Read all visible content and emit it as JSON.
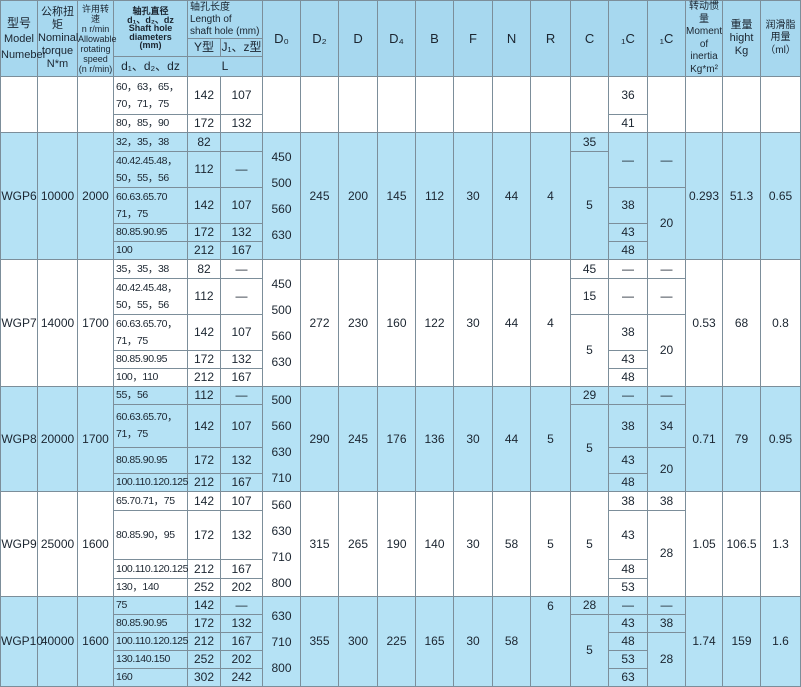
{
  "colors": {
    "border": "#7c8e9a",
    "header_bg": "#a7d8ef",
    "section_blue": "#b5e2f5",
    "text": "#1b2530"
  },
  "header": {
    "model_zh": "型号",
    "model_en": "Model",
    "model_en2": "Numeber",
    "torque": "公称扭矩\nNominal\ntorque\nN*m",
    "speed": "许用转速\nn r/min\nAllowable\nrotating\nspeed\n(n r/min)",
    "shaft": "轴孔直径\nd₁、d₂、dz\nShaft hole\ndiameters\n(mm)",
    "shaft_sub": "d₁、d₂、dz",
    "length": "轴孔长度 Length of\nshaft hole (mm)",
    "y_type": "Y型",
    "j_type": "J₁、z型",
    "l": "L",
    "d0": "D₀",
    "d2": "D₂",
    "d": "D",
    "d4": "D₄",
    "b": "B",
    "f": "F",
    "n": "N",
    "r": "R",
    "c": "C",
    "c1": "₁C",
    "c2": "₁C",
    "inertia": "转动惯量\nMoment of\ninertia\nKg*m²",
    "weight": "重量\nhight\nKg",
    "grease": "润滑脂\n用量\n（ml）"
  },
  "sections": [
    {
      "blue": false,
      "rows": [
        {
          "h": 38,
          "c": [
            {
              "t": "",
              "rs": 2
            },
            {
              "t": "",
              "rs": 2
            },
            {
              "t": "",
              "rs": 2
            },
            {
              "t": "60，63，65，\n70，71，75",
              "k": "sh"
            },
            {
              "t": "142"
            },
            {
              "t": "107"
            },
            {
              "t": "",
              "rs": 2
            },
            {
              "t": "",
              "rs": 2
            },
            {
              "t": "",
              "rs": 2
            },
            {
              "t": "",
              "rs": 2
            },
            {
              "t": "",
              "rs": 2
            },
            {
              "t": "",
              "rs": 2
            },
            {
              "t": "",
              "rs": 2
            },
            {
              "t": "",
              "rs": 2
            },
            {
              "t": "",
              "rs": 2
            },
            {
              "t": "36"
            },
            {
              "t": "",
              "rs": 2
            },
            {
              "t": "",
              "rs": 2
            },
            {
              "t": "",
              "rs": 2
            },
            {
              "t": "",
              "rs": 2
            }
          ]
        },
        {
          "h": 17,
          "c": [
            {
              "t": "80，85，90",
              "k": "sh"
            },
            {
              "t": "172"
            },
            {
              "t": "132"
            },
            {
              "t": "41"
            }
          ]
        }
      ]
    },
    {
      "blue": true,
      "rows": [
        {
          "h": 19,
          "c": [
            {
              "t": "WGP6",
              "rs": 5
            },
            {
              "t": "10000",
              "rs": 5
            },
            {
              "t": "2000",
              "rs": 5
            },
            {
              "t": "32，35，38",
              "k": "sh"
            },
            {
              "t": "82"
            },
            {
              "t": ""
            },
            {
              "t": "450\n500\n560\n630",
              "rs": 5,
              "k": "d0"
            },
            {
              "t": "245",
              "rs": 5
            },
            {
              "t": "200",
              "rs": 5
            },
            {
              "t": "145",
              "rs": 5
            },
            {
              "t": "112",
              "rs": 5
            },
            {
              "t": "30",
              "rs": 5
            },
            {
              "t": "44",
              "rs": 5
            },
            {
              "t": "4",
              "rs": 5
            },
            {
              "t": "35"
            },
            {
              "t": "—",
              "rs": 2
            },
            {
              "t": "—",
              "rs": 2
            },
            {
              "t": "0.293",
              "rs": 5
            },
            {
              "t": "51.3",
              "rs": 5
            },
            {
              "t": "0.65",
              "rs": 5
            }
          ]
        },
        {
          "h": 36,
          "c": [
            {
              "t": "40.42.45.48，\n50，55，56",
              "k": "sh"
            },
            {
              "t": "112"
            },
            {
              "t": "—"
            },
            {
              "t": "5",
              "rs": 4
            }
          ]
        },
        {
          "h": 36,
          "c": [
            {
              "t": "60.63.65.70\n71，75",
              "k": "sh"
            },
            {
              "t": "142"
            },
            {
              "t": "107"
            },
            {
              "t": "38"
            },
            {
              "t": "20",
              "rs": 3
            }
          ]
        },
        {
          "h": 17,
          "c": [
            {
              "t": "80.85.90.95",
              "k": "sh"
            },
            {
              "t": "172"
            },
            {
              "t": "132"
            },
            {
              "t": "43"
            }
          ]
        },
        {
          "h": 17,
          "c": [
            {
              "t": "100",
              "k": "sh"
            },
            {
              "t": "212"
            },
            {
              "t": "167"
            },
            {
              "t": "48"
            }
          ]
        }
      ]
    },
    {
      "blue": false,
      "rows": [
        {
          "h": 19,
          "c": [
            {
              "t": "WGP7",
              "rs": 5
            },
            {
              "t": "14000",
              "rs": 5
            },
            {
              "t": "1700",
              "rs": 5
            },
            {
              "t": "35，35，38",
              "k": "sh"
            },
            {
              "t": "82"
            },
            {
              "t": "—"
            },
            {
              "t": "450\n500\n560\n630",
              "rs": 5,
              "k": "d0"
            },
            {
              "t": "272",
              "rs": 5
            },
            {
              "t": "230",
              "rs": 5
            },
            {
              "t": "160",
              "rs": 5
            },
            {
              "t": "122",
              "rs": 5
            },
            {
              "t": "30",
              "rs": 5
            },
            {
              "t": "44",
              "rs": 5
            },
            {
              "t": "4",
              "rs": 5
            },
            {
              "t": "45"
            },
            {
              "t": "—"
            },
            {
              "t": "—"
            },
            {
              "t": "0.53",
              "rs": 5
            },
            {
              "t": "68",
              "rs": 5
            },
            {
              "t": "0.8",
              "rs": 5
            }
          ]
        },
        {
          "h": 36,
          "c": [
            {
              "t": "40.42.45.48，\n50，55，56",
              "k": "sh"
            },
            {
              "t": "112"
            },
            {
              "t": "—"
            },
            {
              "t": "15"
            },
            {
              "t": "—"
            },
            {
              "t": "—"
            }
          ]
        },
        {
          "h": 36,
          "c": [
            {
              "t": "60.63.65.70，\n71，75",
              "k": "sh"
            },
            {
              "t": "142"
            },
            {
              "t": "107"
            },
            {
              "t": "5",
              "rs": 3
            },
            {
              "t": "38"
            },
            {
              "t": "20",
              "rs": 3
            }
          ]
        },
        {
          "h": 17,
          "c": [
            {
              "t": "80.85.90.95",
              "k": "sh"
            },
            {
              "t": "172"
            },
            {
              "t": "132"
            },
            {
              "t": "43"
            }
          ]
        },
        {
          "h": 17,
          "c": [
            {
              "t": "100，110",
              "k": "sh"
            },
            {
              "t": "212"
            },
            {
              "t": "167"
            },
            {
              "t": "48"
            }
          ]
        }
      ]
    },
    {
      "blue": true,
      "rows": [
        {
          "h": 18,
          "c": [
            {
              "t": "WGP8",
              "rs": 4
            },
            {
              "t": "20000",
              "rs": 4
            },
            {
              "t": "1700",
              "rs": 4
            },
            {
              "t": "55，56",
              "k": "sh"
            },
            {
              "t": "112"
            },
            {
              "t": "—"
            },
            {
              "t": "500\n560\n630\n710",
              "rs": 4,
              "k": "d0"
            },
            {
              "t": "290",
              "rs": 4
            },
            {
              "t": "245",
              "rs": 4
            },
            {
              "t": "176",
              "rs": 4
            },
            {
              "t": "136",
              "rs": 4
            },
            {
              "t": "30",
              "rs": 4
            },
            {
              "t": "44",
              "rs": 4
            },
            {
              "t": "5",
              "rs": 4
            },
            {
              "t": "29"
            },
            {
              "t": "—"
            },
            {
              "t": "—"
            },
            {
              "t": "0.71",
              "rs": 4
            },
            {
              "t": "79",
              "rs": 4
            },
            {
              "t": "0.95",
              "rs": 4
            }
          ]
        },
        {
          "h": 35,
          "c": [
            {
              "t": "60.63.65.70，\n71，75",
              "k": "sh"
            },
            {
              "t": "142"
            },
            {
              "t": "107"
            },
            {
              "t": "5",
              "rs": 3
            },
            {
              "t": "38"
            },
            {
              "t": "34"
            }
          ]
        },
        {
          "h": 17,
          "c": [
            {
              "t": "80.85.90.95",
              "k": "sh"
            },
            {
              "t": "172"
            },
            {
              "t": "132"
            },
            {
              "t": "43"
            },
            {
              "t": "20",
              "rs": 2
            }
          ]
        },
        {
          "h": 18,
          "c": [
            {
              "t": "100.110.120.125",
              "k": "sh"
            },
            {
              "t": "212"
            },
            {
              "t": "167"
            },
            {
              "t": "48"
            }
          ]
        }
      ]
    },
    {
      "blue": false,
      "rows": [
        {
          "h": 19,
          "c": [
            {
              "t": "WGP9",
              "rs": 4
            },
            {
              "t": "25000",
              "rs": 4
            },
            {
              "t": "1600",
              "rs": 4
            },
            {
              "t": "65.70.71，75",
              "k": "sh"
            },
            {
              "t": "142"
            },
            {
              "t": "107"
            },
            {
              "t": "560\n630\n710\n800",
              "rs": 4,
              "k": "d0"
            },
            {
              "t": "315",
              "rs": 4
            },
            {
              "t": "265",
              "rs": 4
            },
            {
              "t": "190",
              "rs": 4
            },
            {
              "t": "140",
              "rs": 4
            },
            {
              "t": "30",
              "rs": 4
            },
            {
              "t": "58",
              "rs": 4
            },
            {
              "t": "5",
              "rs": 4
            },
            {
              "t": "5",
              "rs": 4
            },
            {
              "t": "38"
            },
            {
              "t": "38"
            },
            {
              "t": "1.05",
              "rs": 4
            },
            {
              "t": "106.5",
              "rs": 4
            },
            {
              "t": "1.3",
              "rs": 4
            }
          ]
        },
        {
          "h": 19,
          "c": [
            {
              "t": "80.85.90，95",
              "k": "sh"
            },
            {
              "t": "172"
            },
            {
              "t": "132"
            },
            {
              "t": "43"
            },
            {
              "t": "28",
              "rs": 3
            }
          ]
        },
        {
          "h": 19,
          "c": [
            {
              "t": "100.110.120.125",
              "k": "sh"
            },
            {
              "t": "212"
            },
            {
              "t": "167"
            },
            {
              "t": "48"
            }
          ]
        },
        {
          "h": 18,
          "c": [
            {
              "t": "130，140",
              "k": "sh"
            },
            {
              "t": "252"
            },
            {
              "t": "202"
            },
            {
              "t": "53"
            }
          ]
        }
      ]
    },
    {
      "blue": true,
      "rows": [
        {
          "h": 17,
          "c": [
            {
              "t": "WGP10",
              "rs": 5
            },
            {
              "t": "40000",
              "rs": 5
            },
            {
              "t": "1600",
              "rs": 5
            },
            {
              "t": "75",
              "k": "sh"
            },
            {
              "t": "142"
            },
            {
              "t": "—"
            },
            {
              "t": "630\n710\n800",
              "rs": 5,
              "k": "d0"
            },
            {
              "t": "355",
              "rs": 5
            },
            {
              "t": "300",
              "rs": 5
            },
            {
              "t": "225",
              "rs": 5
            },
            {
              "t": "165",
              "rs": 5
            },
            {
              "t": "30",
              "rs": 5
            },
            {
              "t": "58",
              "rs": 5
            },
            {
              "t": "6",
              "rs": 5,
              "k": "top"
            },
            {
              "t": "28"
            },
            {
              "t": "—"
            },
            {
              "t": "—"
            },
            {
              "t": "1.74",
              "rs": 5
            },
            {
              "t": "159",
              "rs": 5
            },
            {
              "t": "1.6",
              "rs": 5
            }
          ]
        },
        {
          "h": 17,
          "c": [
            {
              "t": "80.85.90.95",
              "k": "sh"
            },
            {
              "t": "172"
            },
            {
              "t": "132"
            },
            {
              "t": "5",
              "rs": 4
            },
            {
              "t": "43"
            },
            {
              "t": "38"
            }
          ]
        },
        {
          "h": 17,
          "c": [
            {
              "t": "100.110.120.125",
              "k": "sh"
            },
            {
              "t": "212"
            },
            {
              "t": "167"
            },
            {
              "t": "48"
            },
            {
              "t": "28",
              "rs": 3
            }
          ]
        },
        {
          "h": 17,
          "c": [
            {
              "t": "130.140.150",
              "k": "sh"
            },
            {
              "t": "252"
            },
            {
              "t": "202"
            },
            {
              "t": "53"
            }
          ]
        },
        {
          "h": 16,
          "c": [
            {
              "t": "160",
              "k": "sh"
            },
            {
              "t": "302"
            },
            {
              "t": "242"
            },
            {
              "t": "63"
            }
          ]
        }
      ]
    }
  ]
}
